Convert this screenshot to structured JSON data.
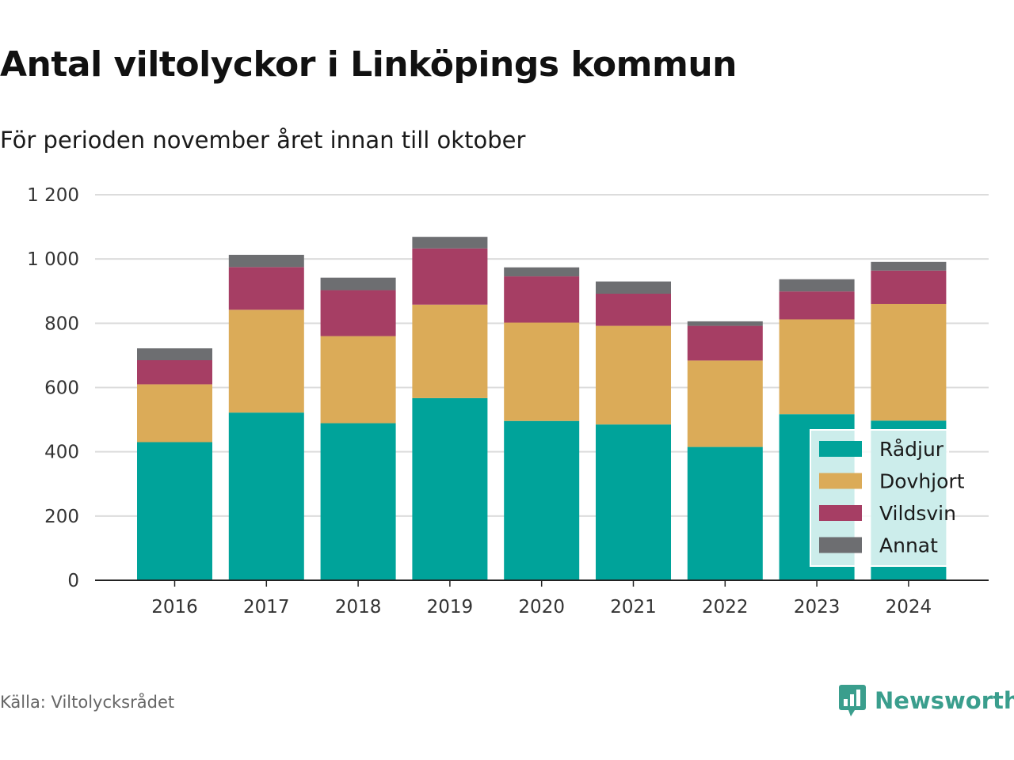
{
  "title": "Antal viltolyckor i Linköpings kommun",
  "subtitle": "För perioden november året innan till oktober",
  "source": "Källa: Viltolycksrådet",
  "brand": "Newsworthy",
  "chart_data": {
    "type": "bar",
    "stacked": true,
    "categories": [
      "2016",
      "2017",
      "2018",
      "2019",
      "2020",
      "2021",
      "2022",
      "2023",
      "2024"
    ],
    "series": [
      {
        "name": "Rådjur",
        "color": "#00a39a",
        "values": [
          430,
          522,
          489,
          567,
          496,
          485,
          415,
          517,
          497
        ]
      },
      {
        "name": "Dovhjort",
        "color": "#dbab58",
        "values": [
          180,
          320,
          271,
          291,
          306,
          307,
          269,
          295,
          363
        ]
      },
      {
        "name": "Vildsvin",
        "color": "#a63e64",
        "values": [
          75,
          133,
          143,
          175,
          144,
          100,
          108,
          87,
          104
        ]
      },
      {
        "name": "Annat",
        "color": "#6d6e71",
        "values": [
          37,
          38,
          39,
          36,
          28,
          38,
          14,
          38,
          27
        ]
      }
    ],
    "yticks": [
      0,
      200,
      400,
      600,
      800,
      1000,
      1200
    ],
    "ytick_labels": [
      "0",
      "200",
      "400",
      "600",
      "800",
      "1 000",
      "1 200"
    ],
    "ylim": [
      0,
      1200
    ],
    "grid": true,
    "legend": "bottom-right"
  }
}
